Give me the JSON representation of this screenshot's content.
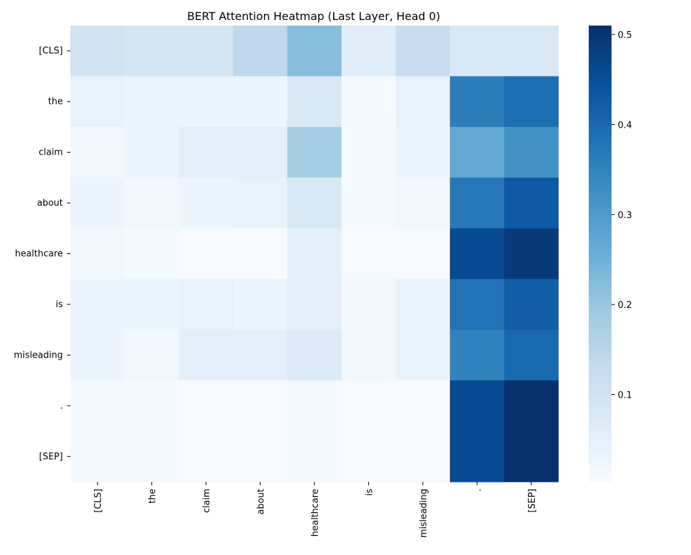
{
  "chart_data": {
    "type": "heatmap",
    "title": "BERT Attention Heatmap (Last Layer, Head 0)",
    "xlabel": "",
    "ylabel": "",
    "x_labels": [
      "[CLS]",
      "the",
      "claim",
      "about",
      "healthcare",
      "is",
      "misleading",
      ".",
      "[SEP]"
    ],
    "y_labels": [
      "[CLS]",
      "the",
      "claim",
      "about",
      "healthcare",
      "is",
      "misleading",
      ".",
      "[SEP]"
    ],
    "values": [
      [
        0.1,
        0.09,
        0.09,
        0.14,
        0.22,
        0.06,
        0.12,
        0.08,
        0.08
      ],
      [
        0.04,
        0.03,
        0.03,
        0.03,
        0.08,
        0.01,
        0.04,
        0.36,
        0.39
      ],
      [
        0.02,
        0.03,
        0.05,
        0.05,
        0.18,
        0.01,
        0.03,
        0.27,
        0.32
      ],
      [
        0.03,
        0.02,
        0.03,
        0.04,
        0.08,
        0.01,
        0.02,
        0.37,
        0.43
      ],
      [
        0.02,
        0.01,
        0.005,
        0.005,
        0.05,
        0.005,
        0.005,
        0.46,
        0.49
      ],
      [
        0.03,
        0.03,
        0.04,
        0.03,
        0.05,
        0.02,
        0.04,
        0.38,
        0.42
      ],
      [
        0.03,
        0.02,
        0.05,
        0.05,
        0.07,
        0.02,
        0.04,
        0.35,
        0.4
      ],
      [
        0.01,
        0.01,
        0.005,
        0.005,
        0.01,
        0.005,
        0.005,
        0.46,
        0.51
      ],
      [
        0.01,
        0.01,
        0.005,
        0.005,
        0.01,
        0.005,
        0.005,
        0.46,
        0.51
      ]
    ],
    "colorscale": "Blues",
    "color_range": [
      0.003,
      0.51
    ],
    "colorbar_ticks": [
      0.1,
      0.2,
      0.3,
      0.4,
      0.5
    ],
    "colorbar_tick_labels": [
      "0.1",
      "0.2",
      "0.3",
      "0.4",
      "0.5"
    ],
    "grid": false,
    "legend": "colorbar-right"
  }
}
